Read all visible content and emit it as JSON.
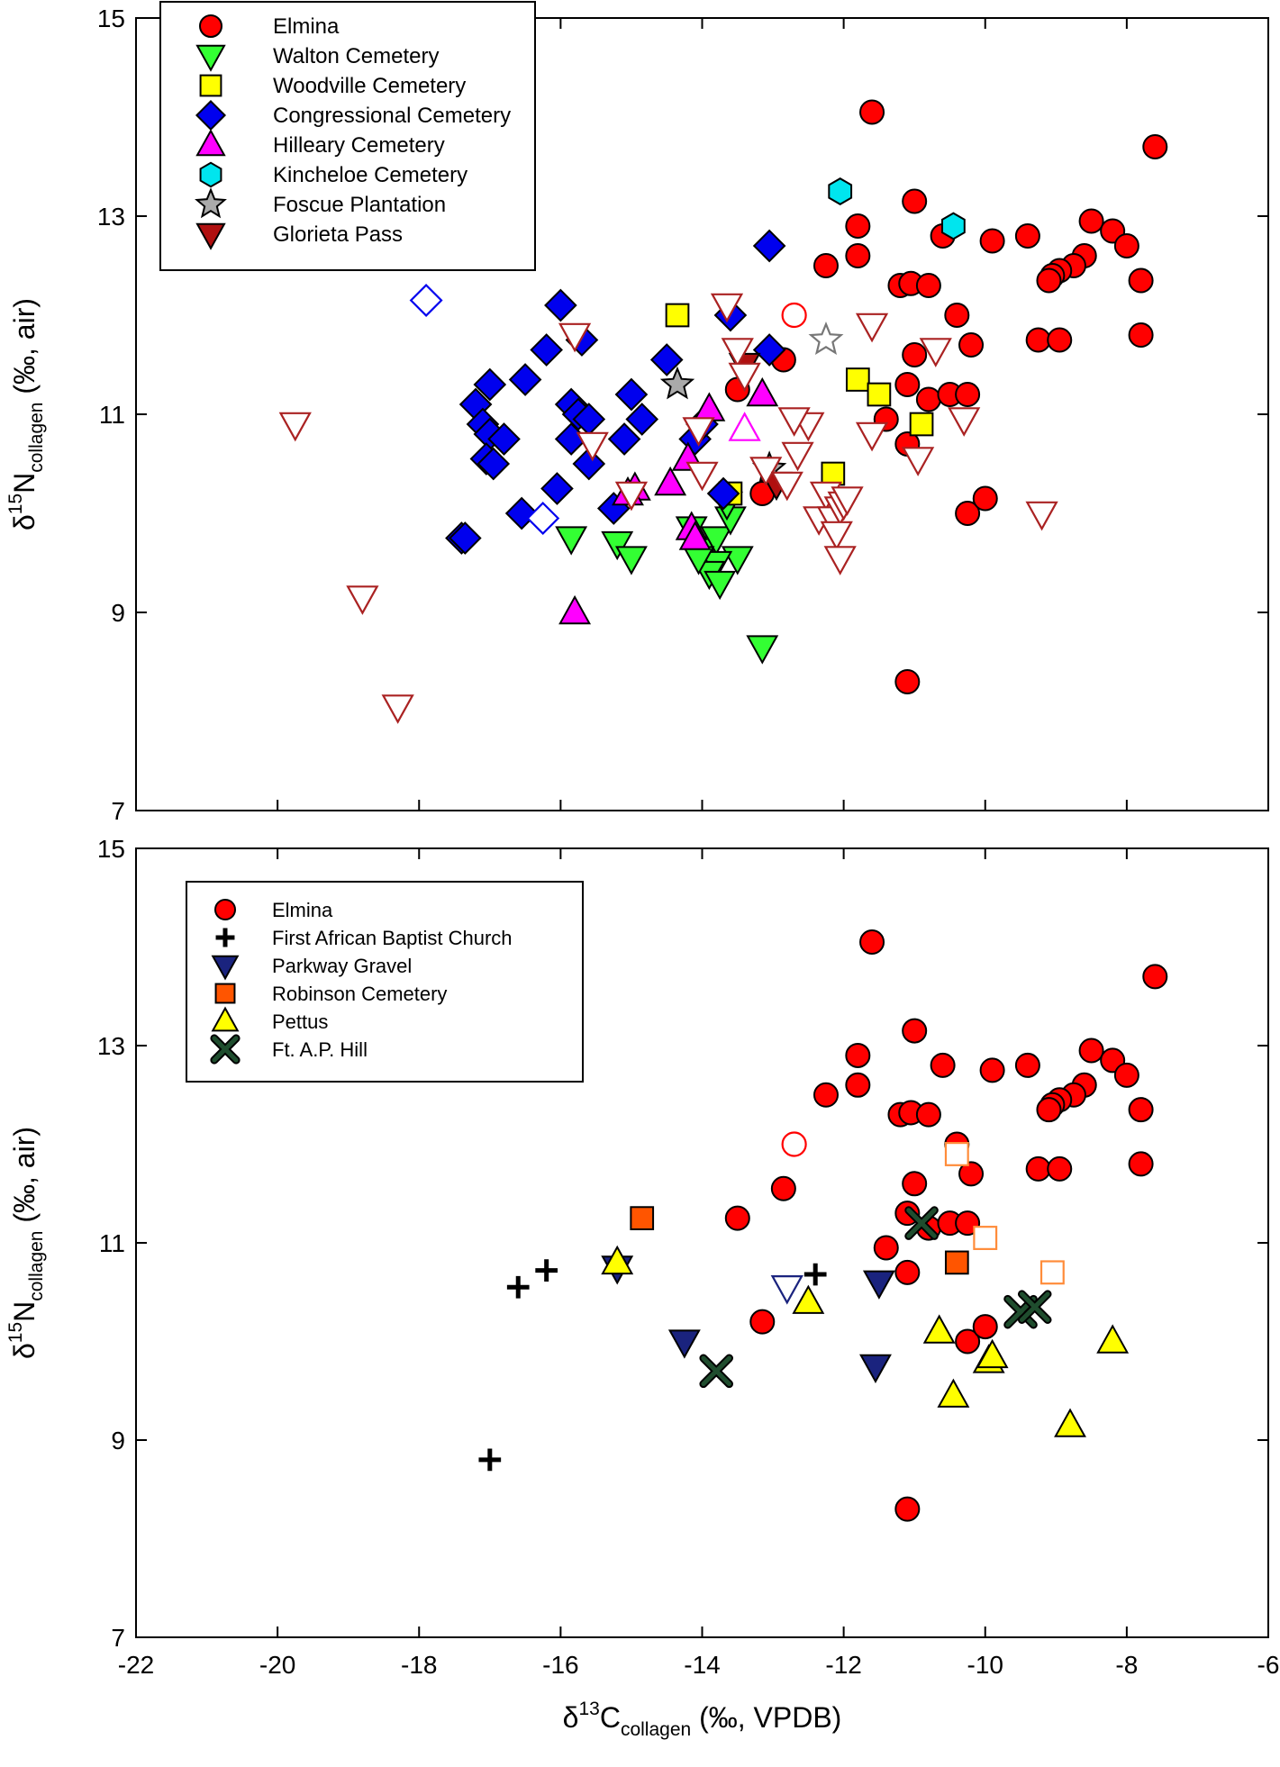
{
  "chart_data": [
    {
      "type": "scatter",
      "panel": "top",
      "ylabel": {
        "symbol": "δ",
        "sup": "15",
        "element": "N",
        "sub": "collagen",
        "units": " (‰, air)"
      },
      "xlim": [
        -22,
        -6
      ],
      "ylim": [
        7,
        15
      ],
      "xticks": [
        -22,
        -20,
        -18,
        -16,
        -14,
        -12,
        -10,
        -8,
        -6
      ],
      "yticks": [
        7,
        9,
        11,
        13,
        15
      ],
      "legend_position": "top-left",
      "series": [
        {
          "name": "Elmina",
          "marker": "circle",
          "color": "#ff0000",
          "points": [
            [
              -11.6,
              14.05
            ],
            [
              -7.6,
              13.7
            ],
            [
              -11.0,
              13.15
            ],
            [
              -11.8,
              12.9
            ],
            [
              -12.25,
              12.5
            ],
            [
              -11.8,
              12.6
            ],
            [
              -11.2,
              12.3
            ],
            [
              -11.05,
              12.32
            ],
            [
              -10.8,
              12.3
            ],
            [
              -10.6,
              12.8
            ],
            [
              -9.9,
              12.75
            ],
            [
              -9.4,
              12.8
            ],
            [
              -8.5,
              12.95
            ],
            [
              -8.2,
              12.85
            ],
            [
              -8.0,
              12.7
            ],
            [
              -7.8,
              12.35
            ],
            [
              -8.6,
              12.6
            ],
            [
              -8.75,
              12.5
            ],
            [
              -8.95,
              12.45
            ],
            [
              -9.05,
              12.4
            ],
            [
              -9.1,
              12.35
            ],
            [
              -10.4,
              12.0
            ],
            [
              -10.2,
              11.7
            ],
            [
              -11.0,
              11.6
            ],
            [
              -12.85,
              11.55
            ],
            [
              -13.5,
              11.25
            ],
            [
              -11.1,
              11.3
            ],
            [
              -10.8,
              11.15
            ],
            [
              -10.5,
              11.2
            ],
            [
              -10.25,
              11.2
            ],
            [
              -11.4,
              10.95
            ],
            [
              -11.1,
              10.7
            ],
            [
              -9.25,
              11.75
            ],
            [
              -8.95,
              11.75
            ],
            [
              -7.8,
              11.8
            ],
            [
              -13.15,
              10.2
            ],
            [
              -10.25,
              10.0
            ],
            [
              -10.0,
              10.15
            ],
            [
              -11.1,
              8.3
            ]
          ]
        },
        {
          "name": "Walton Cemetery",
          "marker": "tri-down",
          "color": "#33ff33",
          "points": [
            [
              -15.85,
              9.75
            ],
            [
              -15.2,
              9.7
            ],
            [
              -15.0,
              9.55
            ],
            [
              -14.15,
              9.85
            ],
            [
              -13.95,
              9.65
            ],
            [
              -13.8,
              9.75
            ],
            [
              -13.6,
              9.95
            ],
            [
              -13.5,
              9.55
            ],
            [
              -13.8,
              9.5
            ],
            [
              -13.9,
              9.4
            ],
            [
              -13.75,
              9.3
            ],
            [
              -13.65,
              10.1
            ],
            [
              -14.05,
              9.55
            ],
            [
              -13.15,
              8.65
            ]
          ]
        },
        {
          "name": "Woodville Cemetery",
          "marker": "square",
          "color": "#ffff00",
          "points": [
            [
              -14.35,
              12.0
            ],
            [
              -11.8,
              11.35
            ],
            [
              -11.5,
              11.2
            ],
            [
              -10.9,
              10.9
            ],
            [
              -12.15,
              10.4
            ],
            [
              -13.6,
              10.2
            ]
          ]
        },
        {
          "name": "Congressional Cemetery",
          "marker": "diamond",
          "color": "#0000ee",
          "points": [
            [
              -16.0,
              12.1
            ],
            [
              -16.2,
              11.65
            ],
            [
              -15.7,
              11.75
            ],
            [
              -13.05,
              12.7
            ],
            [
              -13.05,
              11.65
            ],
            [
              -13.6,
              12.0
            ],
            [
              -15.25,
              10.05
            ],
            [
              -16.5,
              11.35
            ],
            [
              -17.0,
              11.3
            ],
            [
              -17.2,
              11.1
            ],
            [
              -17.1,
              10.9
            ],
            [
              -17.0,
              10.8
            ],
            [
              -16.8,
              10.75
            ],
            [
              -17.05,
              10.55
            ],
            [
              -16.95,
              10.5
            ],
            [
              -15.85,
              11.1
            ],
            [
              -15.75,
              11.0
            ],
            [
              -15.6,
              10.95
            ],
            [
              -15.85,
              10.75
            ],
            [
              -15.6,
              10.5
            ],
            [
              -15.1,
              10.75
            ],
            [
              -14.85,
              10.95
            ],
            [
              -14.5,
              11.55
            ],
            [
              -15.0,
              11.2
            ],
            [
              -14.1,
              10.75
            ],
            [
              -14.0,
              10.9
            ],
            [
              -16.05,
              10.25
            ],
            [
              -16.55,
              10.0
            ],
            [
              -17.4,
              9.75
            ],
            [
              -17.35,
              9.75
            ],
            [
              -13.7,
              10.2
            ]
          ]
        },
        {
          "name": "Hilleary Cemetery",
          "marker": "tri-up",
          "color": "#ff00ff",
          "points": [
            [
              -13.9,
              11.05
            ],
            [
              -13.15,
              11.2
            ],
            [
              -14.2,
              10.55
            ],
            [
              -14.45,
              10.3
            ],
            [
              -14.95,
              10.25
            ],
            [
              -15.05,
              10.2
            ],
            [
              -14.15,
              9.85
            ],
            [
              -14.1,
              9.75
            ],
            [
              -15.8,
              9.0
            ]
          ]
        },
        {
          "name": "Kincheloe Cemetery",
          "marker": "hexagon",
          "color": "#00e5ee",
          "points": [
            [
              -12.05,
              13.25
            ],
            [
              -10.45,
              12.9
            ]
          ]
        },
        {
          "name": "Foscue Plantation",
          "marker": "star",
          "color": "#aaaaaa",
          "points": [
            [
              -14.35,
              11.3
            ],
            [
              -13.05,
              10.45
            ]
          ]
        },
        {
          "name": "Glorieta Pass",
          "marker": "tri-down",
          "color": "#b01010",
          "points": [
            [
              -13.4,
              11.5
            ],
            [
              -12.95,
              10.3
            ]
          ]
        },
        {
          "name": "",
          "marker": "circle",
          "open": true,
          "color": "#ff0000",
          "points": [
            [
              -12.7,
              12.0
            ]
          ]
        },
        {
          "name": "",
          "marker": "diamond",
          "open": true,
          "color": "#0000ee",
          "points": [
            [
              -17.9,
              12.15
            ],
            [
              -16.25,
              9.95
            ]
          ]
        },
        {
          "name": "",
          "marker": "tri-up",
          "open": true,
          "color": "#ff00ff",
          "points": [
            [
              -13.4,
              10.85
            ]
          ]
        },
        {
          "name": "",
          "marker": "star",
          "open": true,
          "color": "#777777",
          "points": [
            [
              -12.25,
              11.75
            ]
          ]
        },
        {
          "name": "",
          "marker": "tri-down",
          "open": true,
          "color": "#aa2222",
          "points": [
            [
              -19.75,
              10.9
            ],
            [
              -18.8,
              9.15
            ],
            [
              -18.3,
              8.05
            ],
            [
              -15.8,
              11.8
            ],
            [
              -15.55,
              10.7
            ],
            [
              -15.0,
              10.2
            ],
            [
              -13.65,
              12.1
            ],
            [
              -13.5,
              11.65
            ],
            [
              -13.4,
              11.4
            ],
            [
              -14.05,
              10.85
            ],
            [
              -14.0,
              10.4
            ],
            [
              -12.65,
              10.6
            ],
            [
              -12.5,
              10.9
            ],
            [
              -12.7,
              10.95
            ],
            [
              -13.1,
              10.45
            ],
            [
              -12.8,
              10.3
            ],
            [
              -12.25,
              10.2
            ],
            [
              -12.35,
              9.95
            ],
            [
              -12.15,
              9.95
            ],
            [
              -12.05,
              10.05
            ],
            [
              -12.0,
              10.1
            ],
            [
              -11.95,
              10.15
            ],
            [
              -12.1,
              9.8
            ],
            [
              -12.05,
              9.55
            ],
            [
              -11.6,
              11.9
            ],
            [
              -11.6,
              10.8
            ],
            [
              -10.95,
              10.55
            ],
            [
              -10.7,
              11.65
            ],
            [
              -10.3,
              10.95
            ],
            [
              -9.2,
              10.0
            ]
          ]
        }
      ]
    },
    {
      "type": "scatter",
      "panel": "bottom",
      "xlabel": {
        "symbol": "δ",
        "sup": "13",
        "element": "C",
        "sub": "collagen",
        "units": " (‰, VPDB)"
      },
      "ylabel": {
        "symbol": "δ",
        "sup": "15",
        "element": "N",
        "sub": "collagen",
        "units": " (‰, air)"
      },
      "xlim": [
        -22,
        -6
      ],
      "ylim": [
        7,
        15
      ],
      "xticks": [
        -22,
        -20,
        -18,
        -16,
        -14,
        -12,
        -10,
        -8,
        -6
      ],
      "yticks": [
        7,
        9,
        11,
        13,
        15
      ],
      "legend_position": "top-left",
      "series": [
        {
          "name": "Elmina",
          "marker": "circle",
          "color": "#ff0000",
          "points": [
            [
              -11.6,
              14.05
            ],
            [
              -7.6,
              13.7
            ],
            [
              -11.0,
              13.15
            ],
            [
              -11.8,
              12.9
            ],
            [
              -12.25,
              12.5
            ],
            [
              -11.8,
              12.6
            ],
            [
              -11.2,
              12.3
            ],
            [
              -11.05,
              12.32
            ],
            [
              -10.8,
              12.3
            ],
            [
              -10.6,
              12.8
            ],
            [
              -9.9,
              12.75
            ],
            [
              -9.4,
              12.8
            ],
            [
              -8.5,
              12.95
            ],
            [
              -8.2,
              12.85
            ],
            [
              -8.0,
              12.7
            ],
            [
              -7.8,
              12.35
            ],
            [
              -8.6,
              12.6
            ],
            [
              -8.75,
              12.5
            ],
            [
              -8.95,
              12.45
            ],
            [
              -9.05,
              12.4
            ],
            [
              -9.1,
              12.35
            ],
            [
              -10.4,
              12.0
            ],
            [
              -10.2,
              11.7
            ],
            [
              -11.0,
              11.6
            ],
            [
              -12.85,
              11.55
            ],
            [
              -13.5,
              11.25
            ],
            [
              -11.1,
              11.3
            ],
            [
              -10.8,
              11.15
            ],
            [
              -10.5,
              11.2
            ],
            [
              -10.25,
              11.2
            ],
            [
              -11.4,
              10.95
            ],
            [
              -11.1,
              10.7
            ],
            [
              -9.25,
              11.75
            ],
            [
              -8.95,
              11.75
            ],
            [
              -7.8,
              11.8
            ],
            [
              -13.15,
              10.2
            ],
            [
              -10.25,
              10.0
            ],
            [
              -10.0,
              10.15
            ],
            [
              -11.1,
              8.3
            ]
          ]
        },
        {
          "name": "First African Baptist Church",
          "marker": "plus",
          "color": "#000000",
          "points": [
            [
              -16.6,
              10.55
            ],
            [
              -16.2,
              10.72
            ],
            [
              -12.4,
              10.68
            ],
            [
              -17.0,
              8.8
            ]
          ]
        },
        {
          "name": "Parkway Gravel",
          "marker": "tri-down",
          "color": "#1a237e",
          "points": [
            [
              -15.2,
              10.75
            ],
            [
              -14.25,
              10.0
            ],
            [
              -11.5,
              10.6
            ],
            [
              -11.55,
              9.75
            ]
          ]
        },
        {
          "name": "Robinson Cemetery",
          "marker": "square",
          "color": "#ff5500",
          "points": [
            [
              -14.85,
              11.25
            ],
            [
              -10.4,
              10.8
            ]
          ]
        },
        {
          "name": "Pettus",
          "marker": "tri-up",
          "color": "#ffff00",
          "points": [
            [
              -15.2,
              10.8
            ],
            [
              -12.5,
              10.4
            ],
            [
              -10.65,
              10.1
            ],
            [
              -9.95,
              9.8
            ],
            [
              -9.9,
              9.85
            ],
            [
              -10.45,
              9.45
            ],
            [
              -8.8,
              9.15
            ],
            [
              -8.2,
              10.0
            ]
          ]
        },
        {
          "name": "Ft. A.P. Hill",
          "marker": "x",
          "color": "#1f4d2e",
          "points": [
            [
              -13.8,
              9.7
            ],
            [
              -10.9,
              11.2
            ],
            [
              -9.5,
              10.3
            ],
            [
              -9.3,
              10.35
            ]
          ]
        },
        {
          "name": "",
          "marker": "circle",
          "open": true,
          "color": "#ff0000",
          "points": [
            [
              -12.7,
              12.0
            ]
          ]
        },
        {
          "name": "",
          "marker": "square",
          "open": true,
          "color": "#ff8c3a",
          "points": [
            [
              -10.4,
              11.9
            ],
            [
              -10.0,
              11.05
            ],
            [
              -9.05,
              10.7
            ]
          ]
        },
        {
          "name": "",
          "marker": "tri-down",
          "open": true,
          "color": "#1a237e",
          "points": [
            [
              -12.8,
              10.55
            ]
          ]
        }
      ]
    }
  ]
}
